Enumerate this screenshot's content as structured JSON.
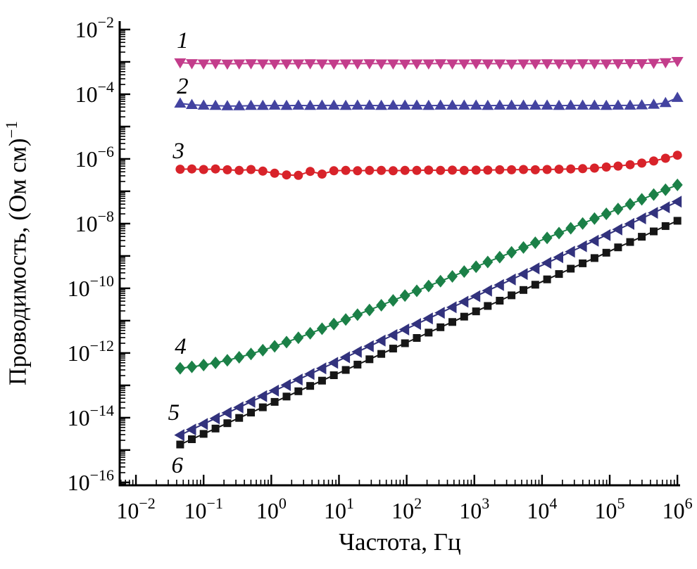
{
  "figure": {
    "background": "#ffffff",
    "axis_color": "#000000"
  },
  "chart_data": {
    "type": "line",
    "subtype": "scatter-line, log-log impedance spectroscopy plot",
    "title": "",
    "xlabel": "Частота, Гц",
    "ylabel": "Проводимость, (Ом см)⁻¹",
    "ylabel_base": "Проводимость, (Ом см)",
    "ylabel_sup": "−1",
    "x_scale": "log",
    "y_scale": "log",
    "xlim_log": [
      -2.24,
      6.04
    ],
    "ylim_log": [
      -16.09,
      -1.74
    ],
    "x_tick_exponents": [
      -2,
      -1,
      0,
      1,
      2,
      3,
      4,
      5,
      6
    ],
    "y_tick_exponents_labeled": [
      -2,
      -4,
      -6,
      -8,
      -10,
      -12,
      -14,
      -16
    ],
    "grid": false,
    "legend_position": "none",
    "ticks": {
      "direction": "in",
      "minor": "log"
    },
    "frequencies": [
      0.045,
      0.067,
      0.1,
      0.15,
      0.224,
      0.335,
      0.501,
      0.75,
      1.12,
      1.68,
      2.51,
      3.76,
      5.62,
      8.41,
      12.6,
      18.8,
      28.2,
      42.2,
      63.1,
      94.4,
      141,
      211,
      316,
      473,
      708,
      1060,
      1580,
      2370,
      3550,
      5310,
      7940,
      11900,
      17800,
      26600,
      39800,
      59600,
      89100,
      133000,
      200000,
      298000,
      447000,
      668000,
      1000000
    ],
    "series": [
      {
        "name": "1",
        "marker": "triangle-down",
        "color": "#c33d8b",
        "values": [
          0.00095,
          0.0009,
          0.00088,
          0.00089,
          0.00087,
          0.00088,
          0.00089,
          0.00088,
          0.00087,
          0.00088,
          0.00088,
          0.00089,
          0.00088,
          0.00087,
          0.00088,
          0.00088,
          0.00089,
          0.00088,
          0.00088,
          0.00087,
          0.00088,
          0.00088,
          0.00089,
          0.00088,
          0.00088,
          0.00089,
          0.00088,
          0.00088,
          0.00087,
          0.00088,
          0.00088,
          0.00089,
          0.00088,
          0.00088,
          0.00089,
          0.00088,
          0.00088,
          0.00089,
          0.0009,
          0.0009,
          0.00092,
          0.00096,
          0.00105
        ]
      },
      {
        "name": "2",
        "marker": "triangle-up",
        "color": "#4343a0",
        "values": [
          5.2e-05,
          4.7e-05,
          4.5e-05,
          4.4e-05,
          4.3e-05,
          4.3e-05,
          4.4e-05,
          4.4e-05,
          4.5e-05,
          4.4e-05,
          4.5e-05,
          4.4e-05,
          4.5e-05,
          4.5e-05,
          4.4e-05,
          4.5e-05,
          4.5e-05,
          4.4e-05,
          4.5e-05,
          4.5e-05,
          4.5e-05,
          4.4e-05,
          4.5e-05,
          4.5e-05,
          4.5e-05,
          4.5e-05,
          4.4e-05,
          4.5e-05,
          4.5e-05,
          4.5e-05,
          4.5e-05,
          4.5e-05,
          4.4e-05,
          4.5e-05,
          4.5e-05,
          4.5e-05,
          4.4e-05,
          4.5e-05,
          4.5e-05,
          4.6e-05,
          4.8e-05,
          5.4e-05,
          7.8e-05
        ]
      },
      {
        "name": "3",
        "marker": "circle",
        "color": "#d8232a",
        "values": [
          4.8e-07,
          4.9e-07,
          4.7e-07,
          4.9e-07,
          4.6e-07,
          4.4e-07,
          4.7e-07,
          4.2e-07,
          3.6e-07,
          3.2e-07,
          3.1e-07,
          4.1e-07,
          3.4e-07,
          4.3e-07,
          4.4e-07,
          4.3e-07,
          4.4e-07,
          4.4e-07,
          4.3e-07,
          4.4e-07,
          4.4e-07,
          4.5e-07,
          4.4e-07,
          4.5e-07,
          4.4e-07,
          4.5e-07,
          4.5e-07,
          4.6e-07,
          4.6e-07,
          4.7e-07,
          4.6e-07,
          4.7e-07,
          4.8e-07,
          4.9e-07,
          5e-07,
          5.2e-07,
          5.6e-07,
          6e-07,
          6.6e-07,
          7.4e-07,
          8.6e-07,
          1.05e-06,
          1.3e-06
        ]
      },
      {
        "name": "4",
        "marker": "diamond",
        "color": "#1b8047",
        "values": [
          3.38e-13,
          3.73e-13,
          4.24e-13,
          4.95e-13,
          5.95e-13,
          7.36e-13,
          9.35e-13,
          1.22e-12,
          1.61e-12,
          2.17e-12,
          2.95e-12,
          4.06e-12,
          5.61e-12,
          7.81e-12,
          1.09e-11,
          1.53e-11,
          2.14e-11,
          3e-11,
          4.22e-11,
          5.94e-11,
          8.36e-11,
          1.18e-10,
          1.66e-10,
          2.33e-10,
          3.29e-10,
          4.63e-10,
          6.52e-10,
          9.19e-10,
          1.29e-09,
          1.82e-09,
          2.57e-09,
          3.62e-09,
          5.1e-09,
          7.19e-09,
          1.01e-08,
          1.43e-08,
          2.01e-08,
          2.83e-08,
          3.99e-08,
          5.63e-08,
          7.93e-08,
          1.12e-07,
          1.57e-07
        ]
      },
      {
        "name": "5",
        "marker": "triangle-left",
        "color": "#32327d",
        "values": [
          2.9e-15,
          4.31e-15,
          6.4e-15,
          9.5e-15,
          1.41e-14,
          2.09e-14,
          3.11e-14,
          4.62e-14,
          6.86e-14,
          1.02e-13,
          1.51e-13,
          2.25e-13,
          3.34e-13,
          4.96e-13,
          7.36e-13,
          1.09e-12,
          1.62e-12,
          2.41e-12,
          3.58e-12,
          5.32e-12,
          7.9e-12,
          1.17e-11,
          1.74e-11,
          2.59e-11,
          3.84e-11,
          5.7e-11,
          8.47e-11,
          1.26e-10,
          1.87e-10,
          2.77e-10,
          4.12e-10,
          6.11e-10,
          9.08e-10,
          1.35e-09,
          2e-09,
          2.97e-09,
          4.42e-09,
          6.56e-09,
          9.74e-09,
          1.45e-08,
          2.15e-08,
          3.19e-08,
          4.74e-08
        ]
      },
      {
        "name": "6",
        "marker": "square",
        "color": "#161616",
        "values": [
          1.48e-15,
          2.16e-15,
          3.16e-15,
          4.62e-15,
          6.75e-15,
          9.86e-15,
          1.44e-14,
          2.1e-14,
          3.08e-14,
          4.5e-14,
          6.57e-14,
          9.6e-14,
          1.4e-13,
          2.05e-13,
          2.99e-13,
          4.38e-13,
          6.4e-13,
          9.35e-13,
          1.37e-12,
          2e-12,
          2.92e-12,
          4.26e-12,
          6.23e-12,
          9.1e-12,
          1.33e-11,
          1.94e-11,
          2.84e-11,
          4.15e-11,
          6.06e-11,
          8.86e-11,
          1.29e-10,
          1.89e-10,
          2.76e-10,
          4.04e-10,
          5.9e-10,
          8.62e-10,
          1.26e-09,
          1.84e-09,
          2.69e-09,
          3.93e-09,
          5.74e-09,
          8.38e-09,
          1.22e-08
        ]
      }
    ],
    "curve_labels": [
      {
        "text": "1",
        "logx": -1.31,
        "logy": -2.57
      },
      {
        "text": "2",
        "logx": -1.31,
        "logy": -3.98
      },
      {
        "text": "3",
        "logx": -1.37,
        "logy": -5.98
      },
      {
        "text": "4",
        "logx": -1.34,
        "logy": -12.02
      },
      {
        "text": "5",
        "logx": -1.44,
        "logy": -14.07
      },
      {
        "text": "6",
        "logx": -1.39,
        "logy": -15.7
      }
    ]
  }
}
